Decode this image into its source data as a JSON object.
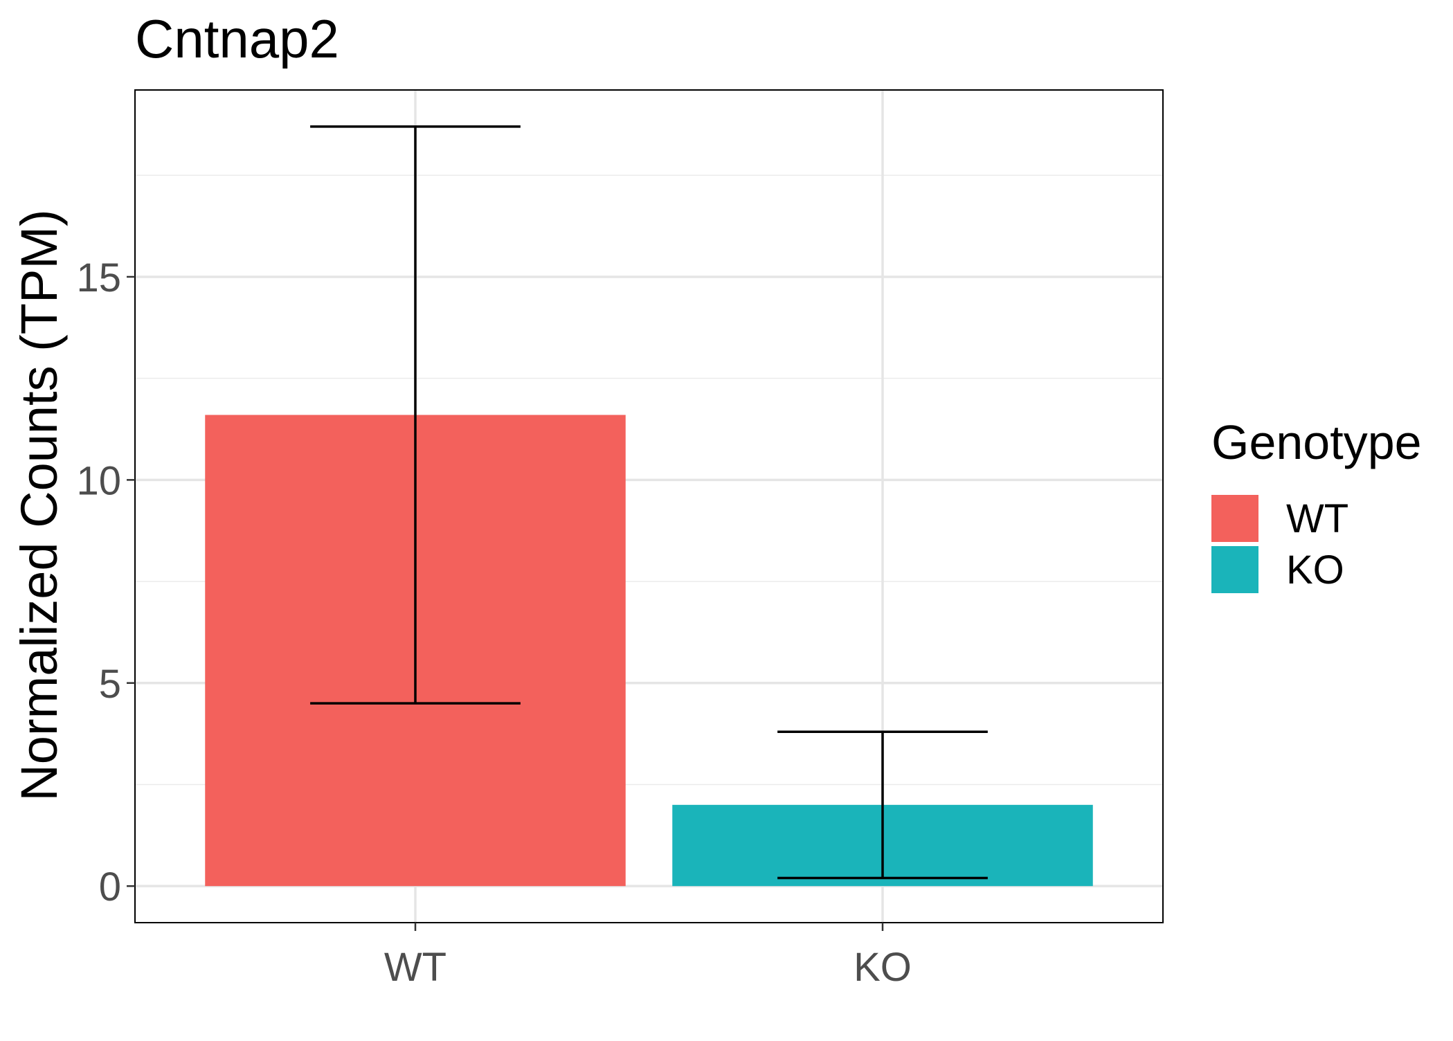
{
  "chart_data": {
    "type": "bar",
    "title": "Cntnap2",
    "xlabel": "",
    "ylabel": "Normalized Counts (TPM)",
    "categories": [
      "WT",
      "KO"
    ],
    "values": [
      11.6,
      2.0
    ],
    "error_bars": [
      {
        "low": 4.5,
        "high": 18.7
      },
      {
        "low": 0.2,
        "high": 3.8
      }
    ],
    "colors": [
      "#F3615C",
      "#1AB4BA"
    ],
    "ylim": [
      -0.9,
      19.6
    ],
    "yticks": [
      0,
      5,
      10,
      15
    ],
    "ytick_labels": [
      "0",
      "5",
      "10",
      "15"
    ],
    "minor_yticks": [
      2.5,
      7.5,
      12.5,
      17.5
    ],
    "grid": true,
    "legend": {
      "title": "Genotype",
      "placement": "right",
      "entries": [
        {
          "label": "WT",
          "color": "#F3615C"
        },
        {
          "label": "KO",
          "color": "#1AB4BA"
        }
      ]
    }
  }
}
